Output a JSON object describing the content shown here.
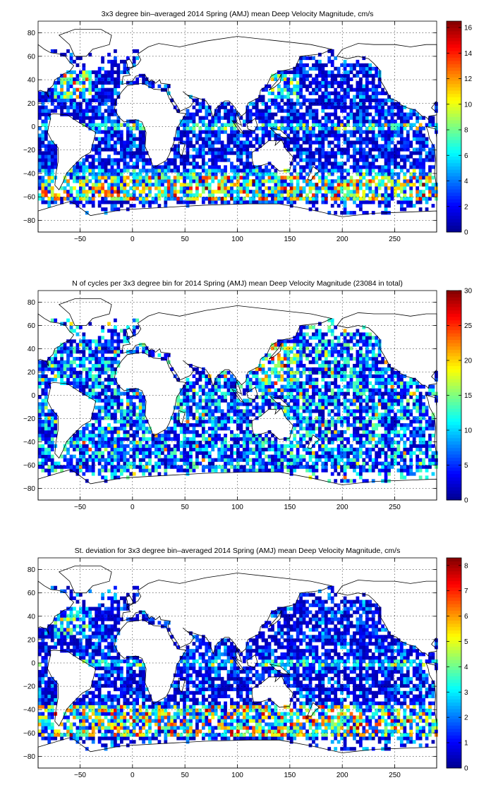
{
  "colormap": "jet",
  "colormap_stops": [
    "#00008f",
    "#0000ff",
    "#00ffff",
    "#ffff00",
    "#ff0000",
    "#800000"
  ],
  "land_color": "#ffffff",
  "coastline_color": "#000000",
  "chart_data": [
    {
      "type": "heatmap",
      "title": "3x3 degree bin–averaged 2014 Spring (AMJ) mean Deep Velocity Magnitude, cm/s",
      "xlabel": "",
      "ylabel": "",
      "xlim": [
        -90,
        290
      ],
      "ylim": [
        -90,
        90
      ],
      "x_ticks": [
        -50,
        0,
        50,
        100,
        150,
        200,
        250
      ],
      "y_ticks": [
        80,
        60,
        40,
        20,
        0,
        -20,
        -40,
        -60,
        -80
      ],
      "bin_size_deg": 3,
      "grid": true,
      "colorbar": {
        "min": 0,
        "max": 16.5,
        "ticks": [
          0,
          2,
          4,
          6,
          8,
          10,
          12,
          14,
          16
        ]
      },
      "notes_visible": "high values along Southern Ocean band (-40 to -60) and western boundary currents"
    },
    {
      "type": "heatmap",
      "title": "N of cycles per 3x3 degree bin for 2014 Spring (AMJ) mean Deep Velocity Magnitude (23084 in total)",
      "xlabel": "",
      "ylabel": "",
      "xlim": [
        -90,
        290
      ],
      "ylim": [
        -90,
        90
      ],
      "x_ticks": [
        -50,
        0,
        50,
        100,
        150,
        200,
        250
      ],
      "y_ticks": [
        80,
        60,
        40,
        20,
        0,
        -20,
        -40,
        -60,
        -80
      ],
      "bin_size_deg": 3,
      "grid": true,
      "total_cycles": 23084,
      "colorbar": {
        "min": 0,
        "max": 30,
        "ticks": [
          0,
          5,
          10,
          15,
          20,
          25,
          30
        ]
      }
    },
    {
      "type": "heatmap",
      "title": "St. deviation for 3x3 degree bin–averaged 2014 Spring (AMJ) mean Deep Velocity Magnitude, cm/s",
      "xlabel": "",
      "ylabel": "",
      "xlim": [
        -90,
        290
      ],
      "ylim": [
        -90,
        90
      ],
      "x_ticks": [
        -50,
        0,
        50,
        100,
        150,
        200,
        250
      ],
      "y_ticks": [
        80,
        60,
        40,
        20,
        0,
        -20,
        -40,
        -60,
        -80
      ],
      "bin_size_deg": 3,
      "grid": true,
      "colorbar": {
        "min": 0,
        "max": 8.3,
        "ticks": [
          0,
          1,
          2,
          3,
          4,
          5,
          6,
          7,
          8
        ]
      }
    }
  ]
}
